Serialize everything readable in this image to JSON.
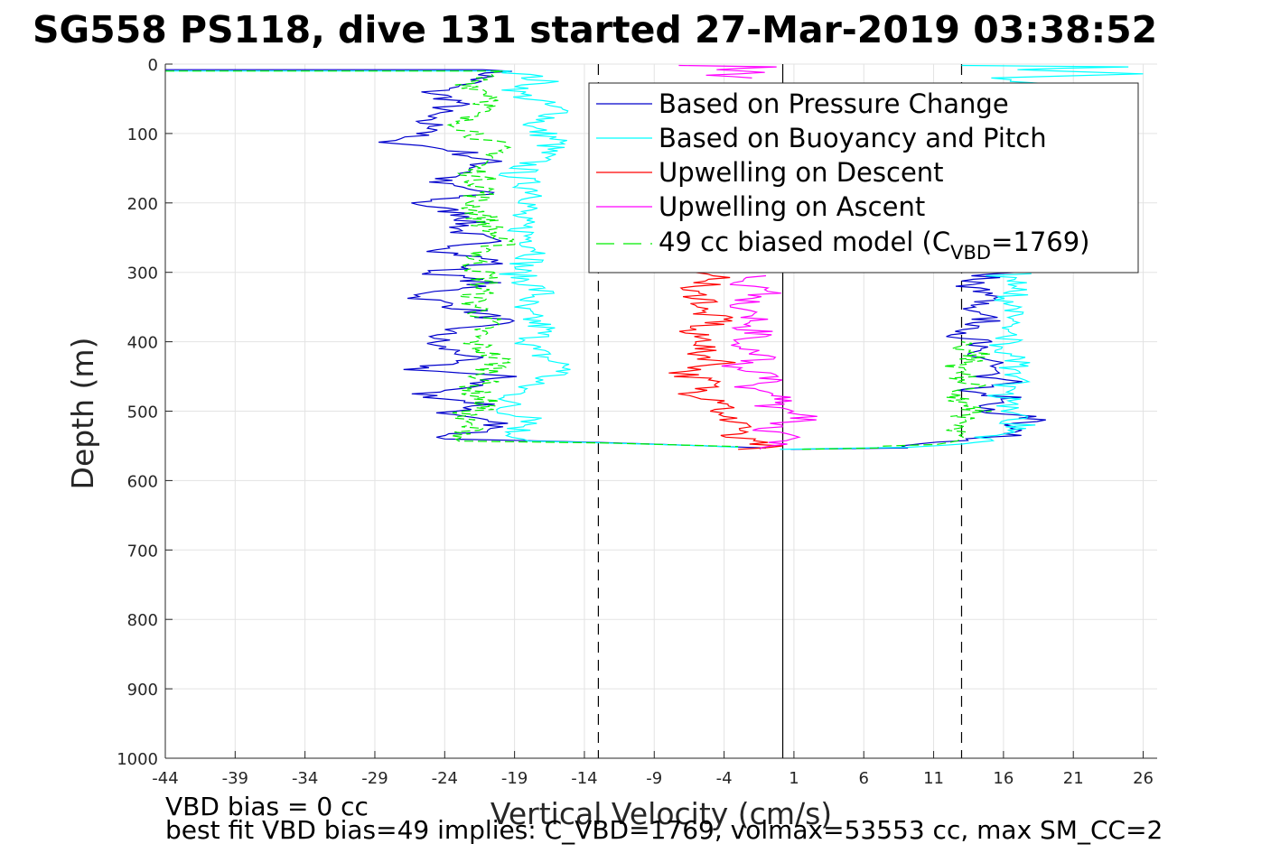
{
  "title": "SG558 PS118, dive 131 started 27-Mar-2019 03:38:52",
  "footer": {
    "line1": "VBD bias = 0 cc",
    "line2": "best fit VBD bias=49 implies: C_VBD=1769, volmax=53553 cc, max SM_CC=2"
  },
  "chart_data": {
    "type": "line",
    "xlabel": "Vertical Velocity (cm/s)",
    "ylabel": "Depth (m)",
    "xlim": [
      -44,
      27
    ],
    "ylim": [
      0,
      1000
    ],
    "y_reversed": true,
    "grid": true,
    "xticks": [
      -44,
      -39,
      -34,
      -29,
      -24,
      -19,
      -14,
      -9,
      -4,
      1,
      6,
      11,
      16,
      21,
      26
    ],
    "yticks": [
      0,
      100,
      200,
      300,
      400,
      500,
      600,
      700,
      800,
      900,
      1000
    ],
    "legend": {
      "location": "top-right",
      "entries": [
        {
          "label": "Based on Pressure Change",
          "color": "#0000cc",
          "style": "solid"
        },
        {
          "label": "Based on Buoyancy and Pitch",
          "color": "#00ffff",
          "style": "solid"
        },
        {
          "label": "Upwelling on Descent",
          "color": "#ff0000",
          "style": "solid"
        },
        {
          "label": "Upwelling on Ascent",
          "color": "#ff00ff",
          "style": "solid"
        },
        {
          "label_main": "49 cc biased model (C",
          "label_sub": "VBD",
          "label_end": "=1769)",
          "color": "#00ee00",
          "style": "dashed"
        }
      ]
    },
    "reference_lines": [
      {
        "x": -13,
        "style": "dashed",
        "color": "#000000"
      },
      {
        "x": 0.2,
        "style": "solid",
        "color": "#000000"
      },
      {
        "x": 13,
        "style": "dashed",
        "color": "#000000"
      }
    ],
    "series": [
      {
        "key": "pressure_descent",
        "color": "#0000cc",
        "points": [
          [
            -44,
            8
          ],
          [
            -20,
            8
          ],
          [
            -22,
            25
          ],
          [
            -25,
            40
          ],
          [
            -23,
            55
          ],
          [
            -26,
            80
          ],
          [
            -24,
            95
          ],
          [
            -28.5,
            110
          ],
          [
            -23,
            125
          ],
          [
            -21,
            140
          ],
          [
            -22,
            155
          ],
          [
            -25,
            170
          ],
          [
            -21,
            185
          ],
          [
            -26,
            200
          ],
          [
            -22,
            220
          ],
          [
            -23,
            240
          ],
          [
            -21,
            255
          ],
          [
            -24,
            270
          ],
          [
            -20,
            285
          ],
          [
            -25,
            300
          ],
          [
            -21,
            315
          ],
          [
            -26,
            335
          ],
          [
            -22,
            355
          ],
          [
            -20,
            370
          ],
          [
            -24,
            385
          ],
          [
            -25,
            405
          ],
          [
            -22,
            420
          ],
          [
            -26,
            440
          ],
          [
            -20,
            450
          ],
          [
            -22,
            465
          ],
          [
            -26,
            475
          ],
          [
            -21,
            490
          ],
          [
            -24,
            505
          ],
          [
            -20,
            520
          ],
          [
            -22,
            530
          ],
          [
            -24,
            540
          ],
          [
            -12,
            545
          ],
          [
            -4,
            550
          ],
          [
            -1,
            553
          ]
        ]
      },
      {
        "key": "pressure_ascent",
        "color": "#0000cc",
        "points": [
          [
            0.5,
            555
          ],
          [
            8,
            553
          ],
          [
            11,
            547
          ],
          [
            16,
            535
          ],
          [
            18,
            510
          ],
          [
            15,
            500
          ],
          [
            16,
            480
          ],
          [
            14,
            470
          ],
          [
            17,
            460
          ],
          [
            14,
            450
          ],
          [
            15,
            440
          ],
          [
            16,
            430
          ],
          [
            13,
            420
          ],
          [
            14,
            400
          ],
          [
            12,
            385
          ],
          [
            15,
            370
          ],
          [
            13,
            350
          ],
          [
            16,
            335
          ],
          [
            13,
            320
          ],
          [
            15,
            305
          ],
          [
            17,
            300
          ]
        ]
      },
      {
        "key": "buoyancy_descent",
        "color": "#00ffff",
        "points": [
          [
            -44,
            10
          ],
          [
            -19,
            10
          ],
          [
            -17,
            25
          ],
          [
            -19,
            40
          ],
          [
            -15.5,
            70
          ],
          [
            -18,
            90
          ],
          [
            -16,
            110
          ],
          [
            -17,
            130
          ],
          [
            -19,
            160
          ],
          [
            -17,
            190
          ],
          [
            -19,
            220
          ],
          [
            -18,
            250
          ],
          [
            -17,
            270
          ],
          [
            -19,
            300
          ],
          [
            -17,
            330
          ],
          [
            -19,
            350
          ],
          [
            -17,
            380
          ],
          [
            -18,
            410
          ],
          [
            -15,
            440
          ],
          [
            -18,
            460
          ],
          [
            -19,
            480
          ],
          [
            -20,
            500
          ],
          [
            -17,
            510
          ],
          [
            -19,
            530
          ],
          [
            -18,
            543
          ],
          [
            -8,
            548
          ],
          [
            -3,
            552
          ]
        ]
      },
      {
        "key": "buoyancy_ascent",
        "color": "#00ffff",
        "points": [
          [
            0,
            555
          ],
          [
            9,
            552
          ],
          [
            14,
            545
          ],
          [
            17,
            520
          ],
          [
            16,
            480
          ],
          [
            17,
            440
          ],
          [
            16,
            410
          ],
          [
            17,
            380
          ],
          [
            16,
            350
          ],
          [
            17.5,
            320
          ],
          [
            16,
            305
          ],
          [
            18,
            302
          ]
        ]
      },
      {
        "key": "upwelling_descent",
        "color": "#ff0000",
        "points": [
          [
            -7,
            300
          ],
          [
            -4,
            310
          ],
          [
            -7,
            325
          ],
          [
            -5,
            340
          ],
          [
            -6,
            355
          ],
          [
            -4,
            370
          ],
          [
            -7,
            385
          ],
          [
            -5,
            400
          ],
          [
            -6,
            415
          ],
          [
            -4,
            430
          ],
          [
            -7,
            445
          ],
          [
            -5,
            460
          ],
          [
            -6,
            475
          ],
          [
            -3,
            490
          ],
          [
            -5,
            505
          ],
          [
            -2,
            520
          ],
          [
            -4,
            535
          ],
          [
            -1,
            550
          ],
          [
            -3,
            555
          ]
        ]
      },
      {
        "key": "upwelling_ascent",
        "color": "#ff00ff",
        "points": [
          [
            -2,
            555
          ],
          [
            1,
            540
          ],
          [
            -1,
            525
          ],
          [
            2,
            510
          ],
          [
            -1,
            495
          ],
          [
            1,
            480
          ],
          [
            -2,
            465
          ],
          [
            0,
            450
          ],
          [
            -3,
            435
          ],
          [
            -1,
            420
          ],
          [
            -3,
            405
          ],
          [
            -1,
            390
          ],
          [
            -3,
            375
          ],
          [
            -1,
            360
          ],
          [
            -3,
            345
          ],
          [
            -1,
            330
          ],
          [
            -3,
            315
          ],
          [
            -1,
            305
          ]
        ]
      },
      {
        "key": "upwelling_surface",
        "color": "#ff00ff",
        "points": [
          [
            -7,
            2
          ],
          [
            -1,
            4
          ],
          [
            -5,
            8
          ],
          [
            -2,
            12
          ],
          [
            -4,
            16
          ],
          [
            -2,
            20
          ]
        ]
      },
      {
        "key": "model_descent",
        "color": "#00ee00",
        "points": [
          [
            -44,
            10
          ],
          [
            -21,
            10
          ],
          [
            -22,
            30
          ],
          [
            -20,
            50
          ],
          [
            -23,
            80
          ],
          [
            -21,
            110
          ],
          [
            -20,
            130
          ],
          [
            -22,
            150
          ],
          [
            -21,
            180
          ],
          [
            -22,
            200
          ],
          [
            -21,
            230
          ],
          [
            -20,
            260
          ],
          [
            -22,
            280
          ],
          [
            -21,
            310
          ],
          [
            -22,
            340
          ],
          [
            -21,
            370
          ],
          [
            -22,
            400
          ],
          [
            -20,
            430
          ],
          [
            -21,
            450
          ],
          [
            -22,
            470
          ],
          [
            -21,
            490
          ],
          [
            -23,
            510
          ],
          [
            -22,
            530
          ],
          [
            -23,
            543
          ],
          [
            -12,
            546
          ],
          [
            -3,
            551
          ]
        ]
      },
      {
        "key": "model_ascent",
        "color": "#00ee00",
        "points": [
          [
            1,
            555
          ],
          [
            7,
            553
          ],
          [
            10,
            548
          ],
          [
            13,
            540
          ],
          [
            12,
            520
          ],
          [
            14,
            500
          ],
          [
            13,
            480
          ],
          [
            14,
            460
          ],
          [
            12,
            440
          ],
          [
            14,
            420
          ],
          [
            13,
            400
          ]
        ]
      },
      {
        "key": "surface_right",
        "color": "#00ffff",
        "points": [
          [
            13,
            2
          ],
          [
            24,
            4
          ],
          [
            17,
            8
          ],
          [
            26,
            14
          ],
          [
            15,
            20
          ],
          [
            18,
            30
          ]
        ]
      }
    ]
  }
}
